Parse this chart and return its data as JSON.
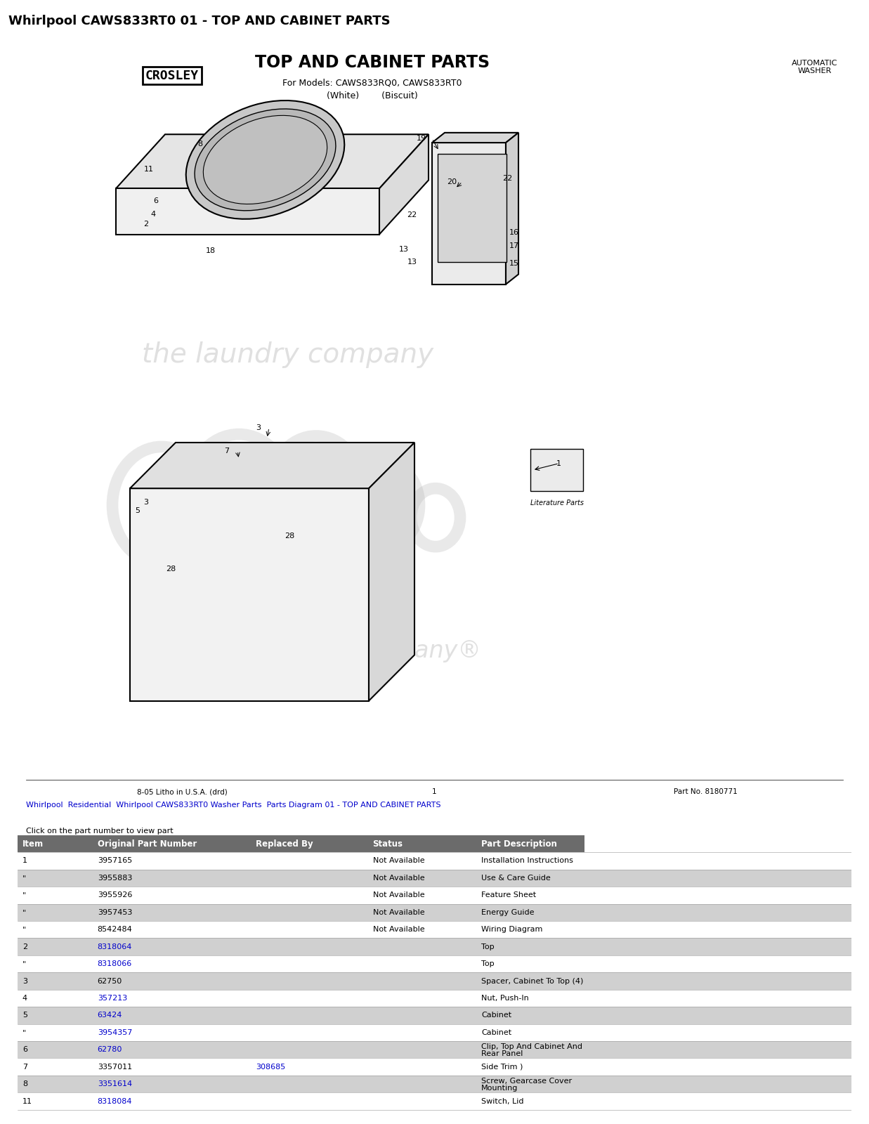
{
  "page_title": "Whirlpool CAWS833RT0 01 - TOP AND CABINET PARTS",
  "diagram_title": "TOP AND CABINET PARTS",
  "diagram_subtitle1": "For Models: CAWS833RQ0, CAWS833RT0",
  "diagram_subtitle2": "(White)        (Biscuit)",
  "diagram_right": "AUTOMATIC\nWASHER",
  "brand": "CROSLEY",
  "footer_left": "8-05 Litho in U.S.A. (drd)",
  "footer_center": "1",
  "footer_right": "Part No. 8180771",
  "breadcrumb_parts": [
    {
      "text": "Whirlpool ",
      "link": false
    },
    {
      "text": "Residential ",
      "link": true
    },
    {
      "text": "Whirlpool CAWS833RT0 Washer Parts ",
      "link": true
    },
    {
      "text": "Parts Diagram 01 - TOP AND CABINET PARTS",
      "link": false
    }
  ],
  "breadcrumb_note": "Click on the part number to view part",
  "table_headers": [
    "Item",
    "Original Part Number",
    "Replaced By",
    "Status",
    "Part Description"
  ],
  "table_header_color": "#6b6b6b",
  "table_row_alt_color": "#d0d0d0",
  "table_row_white": "#ffffff",
  "table_rows": [
    [
      "1",
      "3957165",
      "",
      "Not Available",
      "Installation Instructions",
      false
    ],
    [
      "\"",
      "3955883",
      "",
      "Not Available",
      "Use & Care Guide",
      true
    ],
    [
      "\"",
      "3955926",
      "",
      "Not Available",
      "Feature Sheet",
      false
    ],
    [
      "\"",
      "3957453",
      "",
      "Not Available",
      "Energy Guide",
      true
    ],
    [
      "\"",
      "8542484",
      "",
      "Not Available",
      "Wiring Diagram",
      false
    ],
    [
      "2",
      "8318064",
      "",
      "",
      "Top",
      true
    ],
    [
      "\"",
      "8318066",
      "",
      "",
      "Top",
      false
    ],
    [
      "3",
      "62750",
      "",
      "",
      "Spacer, Cabinet To Top (4)",
      true
    ],
    [
      "4",
      "357213",
      "",
      "",
      "Nut, Push-In",
      false
    ],
    [
      "5",
      "63424",
      "",
      "",
      "Cabinet",
      true
    ],
    [
      "\"",
      "3954357",
      "",
      "",
      "Cabinet",
      false
    ],
    [
      "6",
      "62780",
      "",
      "",
      "Clip, Top And Cabinet And\nRear Panel",
      true
    ],
    [
      "7",
      "3357011",
      "308685",
      "",
      "Side Trim )",
      false
    ],
    [
      "8",
      "3351614",
      "",
      "",
      "Screw, Gearcase Cover\nMounting",
      true
    ],
    [
      "11",
      "8318084",
      "",
      "",
      "Switch, Lid",
      false
    ]
  ],
  "link_color": "#0000cc",
  "linked_parts": [
    "8318064",
    "8318066",
    "357213",
    "63424",
    "3954357",
    "62780",
    "308685",
    "3351614",
    "8318084"
  ],
  "linked_replaced": [
    "308685"
  ],
  "bg_color": "#ffffff"
}
